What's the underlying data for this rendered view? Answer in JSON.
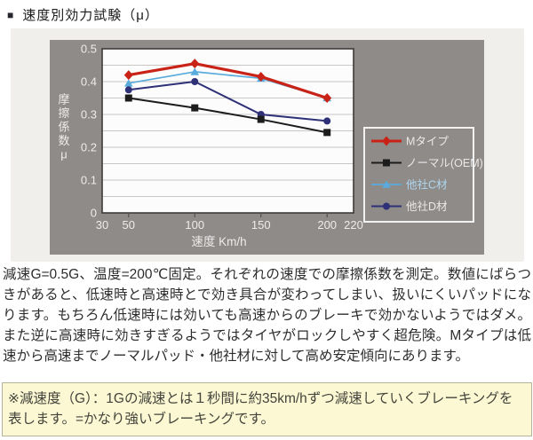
{
  "title": {
    "bullet": "■",
    "text": "速度別効力試験（μ）"
  },
  "chart_data": {
    "type": "line",
    "x": [
      50,
      100,
      150,
      200
    ],
    "xlabel": "速度 Km/h",
    "ylabel": "摩擦係数μ",
    "xlim": [
      30,
      220
    ],
    "ylim": [
      0,
      0.5
    ],
    "xticks": [
      30,
      50,
      100,
      150,
      200,
      220
    ],
    "yticks": [
      0,
      0.1,
      0.2,
      0.3,
      0.4,
      0.5
    ],
    "grid": true,
    "grid_step": 0.05,
    "legend_position": "right",
    "plot_bg": "#fcfcfc",
    "panel_bg": "#8f8b88",
    "grid_color": "#c9c6c4",
    "axis_text_color": "#ececec",
    "series": [
      {
        "name": "Mタイプ",
        "color": "#c92318",
        "marker": "diamond",
        "line_width": 3.2,
        "label_color": "#e9e9e9",
        "values": [
          0.42,
          0.455,
          0.415,
          0.35
        ]
      },
      {
        "name": "ノーマル(OEM)",
        "color": "#1c1c1c",
        "marker": "square",
        "line_width": 2,
        "label_color": "#e9e9e9",
        "values": [
          0.35,
          0.32,
          0.285,
          0.245
        ]
      },
      {
        "name": "他社C材",
        "color": "#58abdc",
        "marker": "triangle",
        "line_width": 1.7,
        "label_color": "#aed6f0",
        "values": [
          0.395,
          0.43,
          0.41,
          0.35
        ]
      },
      {
        "name": "他社D材",
        "color": "#2e3078",
        "marker": "circle",
        "line_width": 2,
        "label_color": "#e9e9e9",
        "values": [
          0.375,
          0.4,
          0.3,
          0.28
        ]
      }
    ],
    "draw_order": [
      2,
      3,
      1,
      0
    ]
  },
  "description": "減速G=0.5G、温度=200℃固定。それぞれの速度での摩擦係数を測定。数値にばらつきがあると、低速時と高速時とで効き具合が変わってしまい、扱いにくいパッドになります。もちろん低速時には効いても高速からのブレーキで効かないようではダメ。また逆に高速時に効きすぎるようではタイヤがロックしやすく超危険。Mタイプは低速から高速までノーマルパッド・他社材に対して高め安定傾向にあります。",
  "note": "※減速度（G）：1Gの減速とは１秒間に約35km/hずつ減速していくブレーキングを表します。=かなり強いブレーキングです。"
}
